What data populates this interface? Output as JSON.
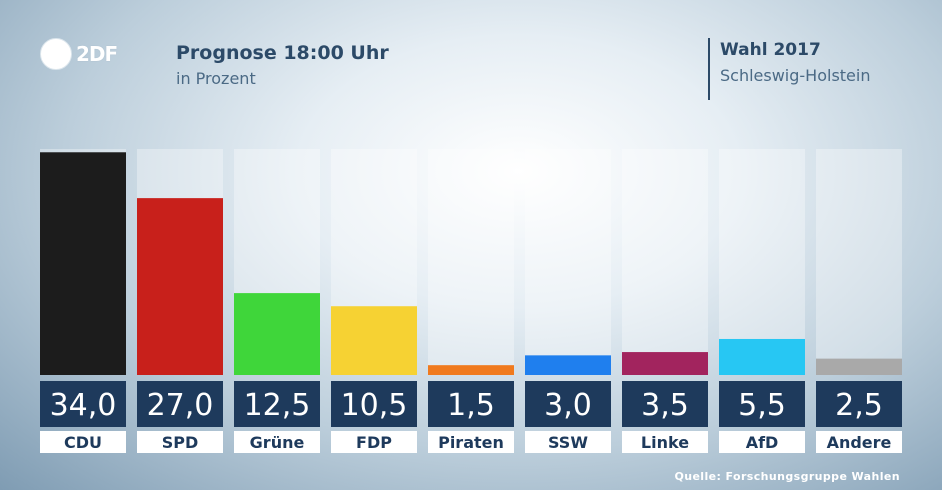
{
  "header": {
    "logo_text": "2DF",
    "title": "Prognose 18:00 Uhr",
    "subtitle": "in Prozent",
    "election_title": "Wahl 2017",
    "election_region": "Schleswig-Holstein"
  },
  "source_text": "Quelle: Forschungsgruppe Wahlen",
  "chart_data": {
    "type": "bar",
    "title": "Prognose 18:00 Uhr",
    "subtitle": "in Prozent",
    "categories": [
      "CDU",
      "SPD",
      "Grüne",
      "FDP",
      "Piraten",
      "SSW",
      "Linke",
      "AfD",
      "Andere"
    ],
    "values": [
      34.0,
      27.0,
      12.5,
      10.5,
      1.5,
      3.0,
      3.5,
      5.5,
      2.5
    ],
    "value_labels": [
      "34,0",
      "27,0",
      "12,5",
      "10,5",
      "1,5",
      "3,0",
      "3,5",
      "5,5",
      "2,5"
    ],
    "colors": [
      "#1c1c1c",
      "#c8201b",
      "#3fd63a",
      "#f6d233",
      "#f07a1e",
      "#1f7fee",
      "#a2245e",
      "#27c7f3",
      "#a9a9a9"
    ],
    "ylim": [
      0,
      34.5
    ],
    "grid": false,
    "legend": "none"
  }
}
